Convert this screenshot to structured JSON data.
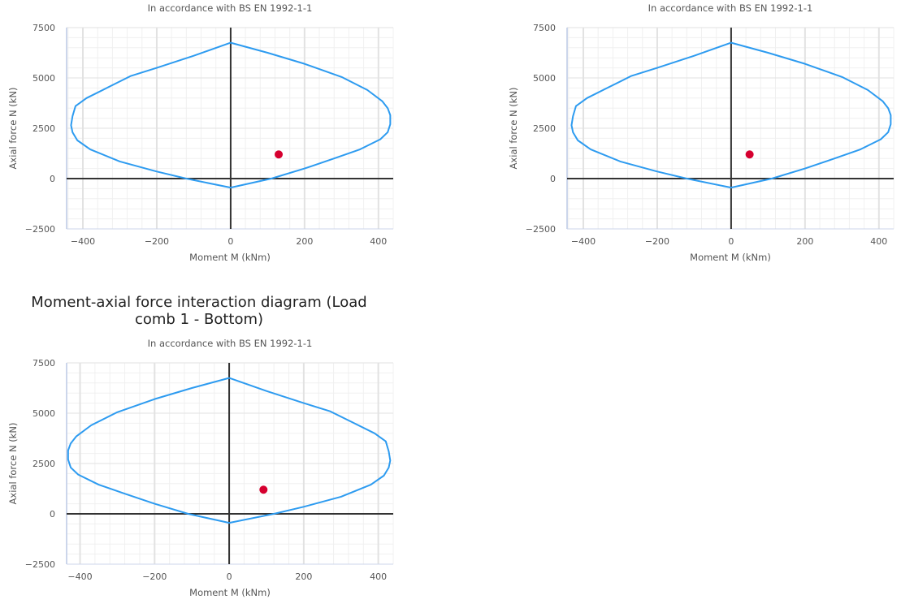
{
  "colors": {
    "curve": "#2d9bf0",
    "point": "#d6002f",
    "axis": "#333333",
    "grid_major": "#e2e2e2",
    "grid_minor": "#f0f0f0",
    "tick_text": "#555555"
  },
  "chart_data": [
    {
      "type": "scatter",
      "title": "",
      "subtitle": "In accordance with BS EN 1992-1-1",
      "xlabel": "Moment M (kNm)",
      "ylabel": "Axial force N (kN)",
      "xlim": [
        -444,
        440
      ],
      "ylim": [
        -2500,
        7500
      ],
      "xticks": [
        -400,
        -200,
        0,
        200,
        400
      ],
      "yticks": [
        -2500,
        0,
        2500,
        5000,
        7500
      ],
      "grid": true,
      "interaction_curve": [
        [
          0,
          6750
        ],
        [
          100,
          6250
        ],
        [
          200,
          5700
        ],
        [
          300,
          5050
        ],
        [
          370,
          4400
        ],
        [
          410,
          3850
        ],
        [
          425,
          3500
        ],
        [
          432,
          3150
        ],
        [
          432,
          2700
        ],
        [
          425,
          2300
        ],
        [
          405,
          1950
        ],
        [
          350,
          1450
        ],
        [
          280,
          1000
        ],
        [
          200,
          500
        ],
        [
          110,
          0
        ],
        [
          0,
          -450
        ],
        [
          -120,
          0
        ],
        [
          -200,
          350
        ],
        [
          -300,
          850
        ],
        [
          -380,
          1450
        ],
        [
          -415,
          1900
        ],
        [
          -428,
          2300
        ],
        [
          -432,
          2650
        ],
        [
          -428,
          3100
        ],
        [
          -420,
          3600
        ],
        [
          -390,
          4000
        ],
        [
          -330,
          4550
        ],
        [
          -270,
          5100
        ],
        [
          -200,
          5500
        ],
        [
          -100,
          6100
        ],
        [
          0,
          6750
        ]
      ],
      "load_point": [
        130,
        1200
      ]
    },
    {
      "type": "scatter",
      "title": "",
      "subtitle": "In accordance with BS EN 1992-1-1",
      "xlabel": "Moment M (kNm)",
      "ylabel": "Axial force N (kN)",
      "xlim": [
        -444,
        440
      ],
      "ylim": [
        -2500,
        7500
      ],
      "xticks": [
        -400,
        -200,
        0,
        200,
        400
      ],
      "yticks": [
        -2500,
        0,
        2500,
        5000,
        7500
      ],
      "grid": true,
      "interaction_curve": [
        [
          0,
          6750
        ],
        [
          100,
          6250
        ],
        [
          200,
          5700
        ],
        [
          300,
          5050
        ],
        [
          370,
          4400
        ],
        [
          410,
          3850
        ],
        [
          425,
          3500
        ],
        [
          432,
          3150
        ],
        [
          432,
          2700
        ],
        [
          425,
          2300
        ],
        [
          405,
          1950
        ],
        [
          350,
          1450
        ],
        [
          280,
          1000
        ],
        [
          200,
          500
        ],
        [
          110,
          0
        ],
        [
          0,
          -450
        ],
        [
          -120,
          0
        ],
        [
          -200,
          350
        ],
        [
          -300,
          850
        ],
        [
          -380,
          1450
        ],
        [
          -415,
          1900
        ],
        [
          -428,
          2300
        ],
        [
          -432,
          2650
        ],
        [
          -428,
          3100
        ],
        [
          -420,
          3600
        ],
        [
          -390,
          4000
        ],
        [
          -330,
          4550
        ],
        [
          -270,
          5100
        ],
        [
          -200,
          5500
        ],
        [
          -100,
          6100
        ],
        [
          0,
          6750
        ]
      ],
      "load_point": [
        50,
        1200
      ]
    },
    {
      "type": "scatter",
      "title": "Moment-axial force interaction diagram (Load comb 1 - Bottom)",
      "subtitle": "In accordance with BS EN 1992-1-1",
      "xlabel": "Moment M (kNm)",
      "ylabel": "Axial force N (kN)",
      "xlim": [
        -436,
        440
      ],
      "ylim": [
        -2500,
        7500
      ],
      "xticks": [
        -400,
        -200,
        0,
        200,
        400
      ],
      "yticks": [
        -2500,
        0,
        2500,
        5000,
        7500
      ],
      "grid": true,
      "interaction_curve": [
        [
          0,
          6750
        ],
        [
          -100,
          6250
        ],
        [
          -200,
          5700
        ],
        [
          -300,
          5050
        ],
        [
          -370,
          4400
        ],
        [
          -410,
          3850
        ],
        [
          -425,
          3500
        ],
        [
          -432,
          3150
        ],
        [
          -432,
          2700
        ],
        [
          -425,
          2300
        ],
        [
          -405,
          1950
        ],
        [
          -350,
          1450
        ],
        [
          -280,
          1000
        ],
        [
          -200,
          500
        ],
        [
          -110,
          0
        ],
        [
          0,
          -450
        ],
        [
          120,
          0
        ],
        [
          200,
          350
        ],
        [
          300,
          850
        ],
        [
          380,
          1450
        ],
        [
          415,
          1900
        ],
        [
          428,
          2300
        ],
        [
          432,
          2650
        ],
        [
          428,
          3100
        ],
        [
          420,
          3600
        ],
        [
          390,
          4000
        ],
        [
          330,
          4550
        ],
        [
          270,
          5100
        ],
        [
          200,
          5500
        ],
        [
          100,
          6100
        ],
        [
          0,
          6750
        ]
      ],
      "load_point": [
        92,
        1200
      ]
    }
  ]
}
